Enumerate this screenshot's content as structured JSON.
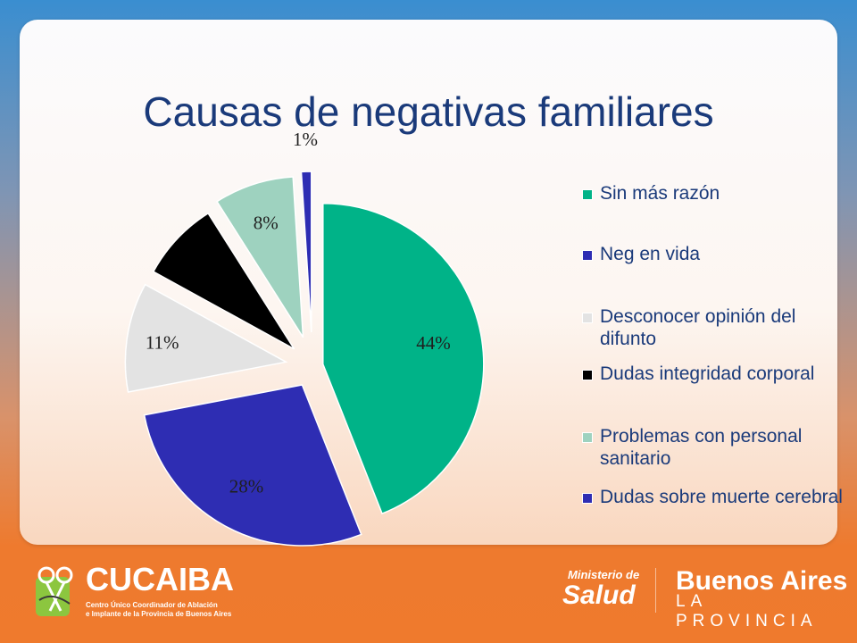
{
  "slide": {
    "title": "Causas de  negativas familiares"
  },
  "chart_data": {
    "type": "pie",
    "title": "Causas de  negativas familiares",
    "categories": [
      "Sin más razón",
      "Neg en vida",
      "Desconocer opinión del difunto",
      "Dudas integridad corporal",
      "Problemas con personal sanitario",
      "Dudas sobre muerte cerebral"
    ],
    "slices": [
      {
        "label": "Sin más razón",
        "value": 44,
        "display": "44%",
        "color": "#00b388"
      },
      {
        "label": "Dudas sobre muerte cerebral",
        "value": 28,
        "display": "28%",
        "color": "#2e2db3"
      },
      {
        "label": "Desconocer opinión del difunto",
        "value": 11,
        "display": "11%",
        "color": "#e3e3e3"
      },
      {
        "label": "Dudas integridad corporal",
        "value": 8,
        "display": "",
        "color": "#000000"
      },
      {
        "label": "Problemas con personal sanitario",
        "value": 8,
        "display": "8%",
        "color": "#9ed2bf"
      },
      {
        "label": "Neg en vida",
        "value": 1,
        "display": "1%",
        "color": "#2e2db3"
      }
    ],
    "legend_position": "right"
  },
  "legend": {
    "items": [
      {
        "label": "Sin más razón",
        "color": "#00b388"
      },
      {
        "label": "Neg en vida",
        "color": "#2e2db3"
      },
      {
        "label": "Desconocer opinión del difunto",
        "color": "#e3e3e3"
      },
      {
        "label": "Dudas integridad corporal",
        "color": "#000000"
      },
      {
        "label": "Problemas con personal sanitario",
        "color": "#9ed2bf"
      },
      {
        "label": "Dudas sobre muerte cerebral",
        "color": "#2e2db3"
      }
    ]
  },
  "footer": {
    "cucaiba_name": "CUCAIBA",
    "cucaiba_line1": "Centro Único Coordinador de Ablación",
    "cucaiba_line2": "e Implante de la Provincia de Buenos Aires",
    "ministerio_line1": "Ministerio de",
    "ministerio_line2": "Salud",
    "ba_line1": "Buenos Aires",
    "ba_line2": "LA PROVINCIA"
  }
}
